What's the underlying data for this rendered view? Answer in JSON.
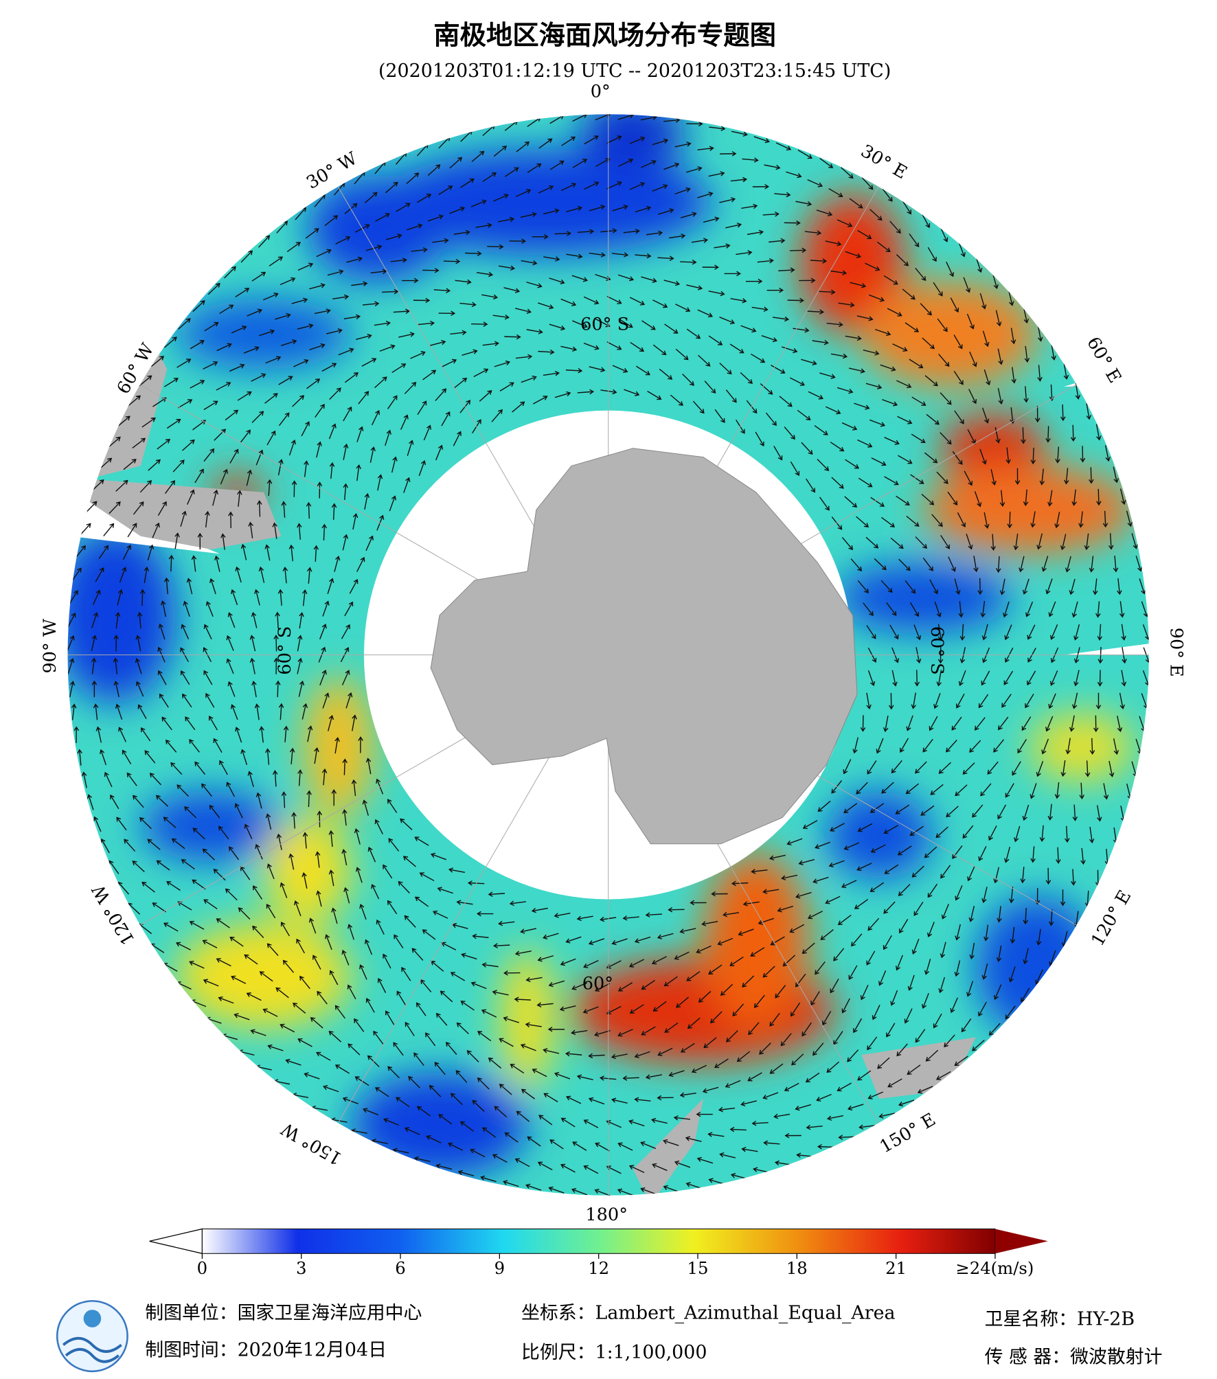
{
  "header": {
    "title": "南极地区海面风场分布专题图",
    "subtitle": "(20201203T01:12:19 UTC -- 20201203T23:15:45 UTC)"
  },
  "map": {
    "longitude_labels": [
      "0°",
      "30° E",
      "60° E",
      "90° E",
      "120° E",
      "150° E",
      "180°",
      "150° W",
      "120° W",
      "90° W",
      "60° W",
      "30° W"
    ],
    "latitude_labels": [
      "60° S",
      "60° S",
      "60° S",
      "60°"
    ]
  },
  "colorbar": {
    "lim": [
      0,
      24
    ],
    "ticks": [
      0,
      3,
      6,
      9,
      12,
      15,
      18,
      21,
      {
        "value": 24,
        "label": "≥24(m/s)"
      }
    ]
  },
  "footer": {
    "unit": "制图单位：国家卫星海洋应用中心",
    "date": "制图时间：2020年12月04日",
    "crs": "坐标系：Lambert_Azimuthal_Equal_Area",
    "scale": "比例尺：1:1,100,000",
    "satellite": "卫星名称：HY-2B",
    "sensor": "传 感 器：微波散射计"
  }
}
